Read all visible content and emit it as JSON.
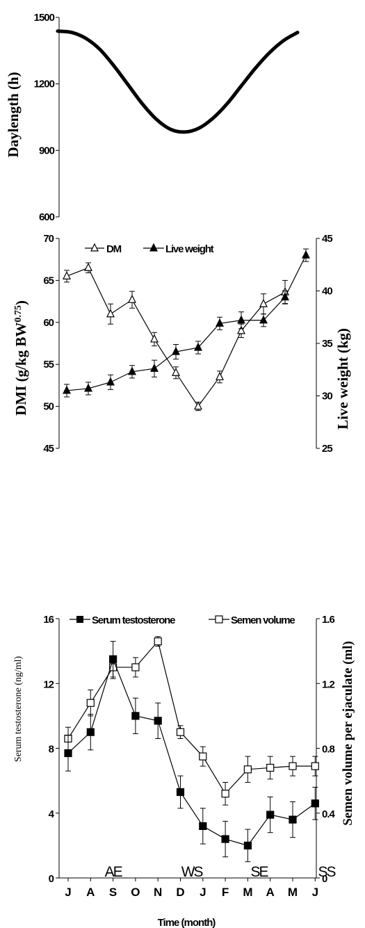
{
  "chart_data": [
    {
      "type": "line",
      "ylabel": "Daylength (h)",
      "ylim": [
        600,
        1500
      ],
      "yticks": [
        "1500",
        "1200",
        "900",
        "600"
      ],
      "series": [
        {
          "values": [
            1438,
            1432,
            1405,
            1355,
            1280,
            1195,
            1110,
            1040,
            995,
            983,
            1000,
            1045,
            1110,
            1190,
            1270,
            1340,
            1395,
            1432
          ]
        }
      ]
    },
    {
      "type": "line",
      "ylabel_left": "DMI (g/kg BW",
      "ylabel_left_sup": "0.75",
      "ylabel_left_end": ")",
      "ylabel_right": "Live weight (kg)",
      "ylim_left": [
        45,
        70
      ],
      "ylim_right": [
        25,
        45
      ],
      "yticks_left": [
        "70",
        "65",
        "60",
        "55",
        "50",
        "45"
      ],
      "yticks_right": [
        "45",
        "40",
        "35",
        "30",
        "25"
      ],
      "series": [
        {
          "name": "DM",
          "axis": "left",
          "values": [
            65.5,
            66.5,
            61,
            62.7,
            58,
            54,
            50,
            53.5,
            59,
            62.2,
            63.6
          ],
          "errors": [
            0.7,
            0.6,
            1.2,
            1.0,
            0.8,
            0.7,
            0.5,
            0.7,
            0.8,
            1.2,
            1.4
          ]
        },
        {
          "name": "Live weight",
          "axis": "right",
          "values": [
            30.5,
            30.7,
            31.3,
            32.3,
            32.6,
            34.2,
            34.6,
            36.9,
            37.2,
            37.2,
            39.4,
            43.4
          ],
          "errors": [
            0.6,
            0.6,
            0.7,
            0.6,
            0.8,
            0.7,
            0.6,
            0.6,
            0.8,
            0.6,
            0.6,
            0.6
          ]
        }
      ]
    },
    {
      "type": "line",
      "ylabel_left": "Serum testosterone (ng/ml)",
      "ylabel_right": "Semen volume per ejaculate (ml)",
      "ylim_left": [
        0,
        16
      ],
      "ylim_right": [
        0,
        1.6
      ],
      "yticks_left": [
        "16",
        "12",
        "8",
        "4",
        "0"
      ],
      "yticks_right": [
        "1.6",
        "1.2",
        "0.8",
        "0.4",
        "0"
      ],
      "categories": [
        "J",
        "A",
        "S",
        "O",
        "N",
        "D",
        "J",
        "F",
        "M",
        "A",
        "M",
        "J"
      ],
      "xlabel": "Time (month)",
      "season_markers": [
        {
          "label": "AE",
          "month_index": 2
        },
        {
          "label": "WS",
          "month_index": 5.5
        },
        {
          "label": "SE",
          "month_index": 8.5
        },
        {
          "label": "SS",
          "month_index": 11.5
        }
      ],
      "series": [
        {
          "name": "Serum testosterone",
          "axis": "left",
          "values": [
            7.7,
            9.0,
            13.5,
            10.0,
            9.7,
            5.3,
            3.2,
            2.4,
            2.0,
            3.9,
            3.6,
            4.6
          ],
          "errors": [
            1.1,
            1.1,
            1.1,
            1.1,
            1.1,
            1.0,
            1.1,
            1.1,
            1.0,
            1.1,
            1.1,
            1.0
          ]
        },
        {
          "name": "Semen volume",
          "axis": "right",
          "values": [
            0.86,
            1.08,
            1.3,
            1.3,
            1.46,
            0.9,
            0.75,
            0.52,
            0.67,
            0.68,
            0.69,
            0.69
          ],
          "errors": [
            0.07,
            0.08,
            0.07,
            0.06,
            0.03,
            0.04,
            0.06,
            0.07,
            0.08,
            0.07,
            0.06,
            0.06
          ]
        }
      ]
    }
  ]
}
